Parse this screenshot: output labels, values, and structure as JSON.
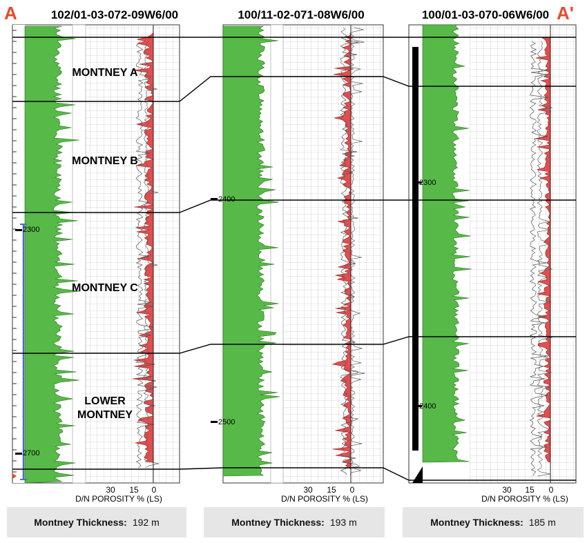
{
  "start_letter": "A",
  "end_letter": "A'",
  "wells": [
    {
      "name": "102/01-03-072-09W6/00",
      "depths": [
        "2300",
        "2700"
      ],
      "scale": [
        "30",
        "15",
        "0"
      ],
      "axis_label": "D/N POROSITY % (LS)",
      "thickness_label": "Montney Thickness:",
      "thickness_value": "192 m"
    },
    {
      "name": "100/11-02-071-08W6/00",
      "depths": [
        "2400",
        "2500"
      ],
      "scale": [
        "30",
        "15",
        "0"
      ],
      "axis_label": "D/N POROSITY % (LS)",
      "thickness_label": "Montney Thickness:",
      "thickness_value": "193 m"
    },
    {
      "name": "100/01-03-070-06W6/00",
      "depths": [
        "2300",
        "2400"
      ],
      "scale": [
        "30",
        "15",
        "0"
      ],
      "axis_label": "D/N POROSITY % (LS)",
      "thickness_label": "Montney Thickness:",
      "thickness_value": "185 m"
    }
  ],
  "zones": [
    {
      "line1": "MONTNEY A",
      "line2": ""
    },
    {
      "line1": "MONTNEY B",
      "line2": ""
    },
    {
      "line1": "MONTNEY C",
      "line2": ""
    },
    {
      "line1": "LOWER",
      "line2": "MONTNEY"
    }
  ],
  "colors": {
    "gamma_fill": "#57b947",
    "porosity_fill": "#e54c4c",
    "letter": "#e8492b",
    "marker_blue": "#4a6fc2",
    "box_bg": "#e6e6e6"
  }
}
